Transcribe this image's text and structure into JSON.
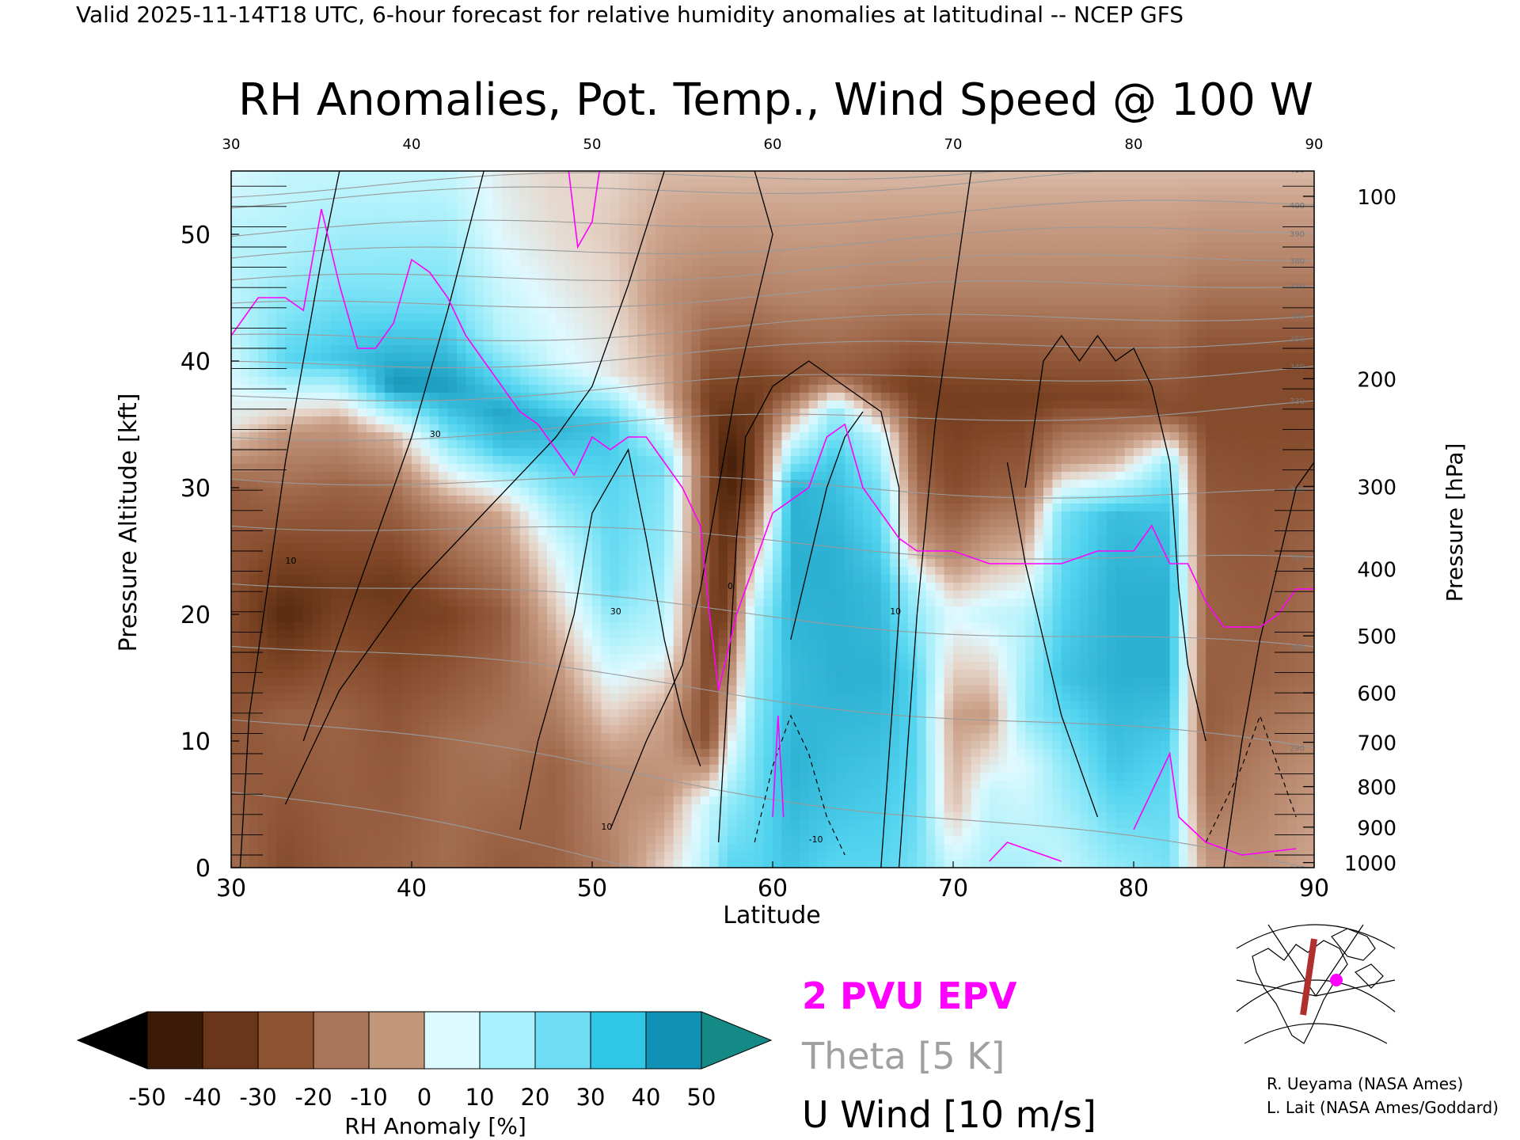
{
  "header": "Valid 2025-11-14T18 UTC, 6-hour forecast for relative humidity anomalies at latitudinal -- NCEP GFS",
  "title": "RH Anomalies, Pot. Temp., Wind Speed @ 100 W",
  "chart_data": {
    "type": "heatmap",
    "xlabel": "Latitude",
    "ylabel_left": "Pressure Altitude [kft]",
    "ylabel_right": "Pressure [hPa]",
    "xlim": [
      30,
      90
    ],
    "ylim": [
      0,
      55
    ],
    "x_ticks": [
      "30",
      "40",
      "50",
      "60",
      "70",
      "80",
      "90"
    ],
    "top_ticks": [
      "30",
      "40",
      "50",
      "60",
      "70",
      "80",
      "90"
    ],
    "y_ticks": [
      "0",
      "10",
      "20",
      "30",
      "40",
      "50"
    ],
    "pressure_ticks": [
      {
        "label": "100",
        "kft": 53.0
      },
      {
        "label": "200",
        "kft": 38.6
      },
      {
        "label": "300",
        "kft": 30.1
      },
      {
        "label": "400",
        "kft": 23.6
      },
      {
        "label": "500",
        "kft": 18.3
      },
      {
        "label": "600",
        "kft": 13.8
      },
      {
        "label": "700",
        "kft": 9.9
      },
      {
        "label": "800",
        "kft": 6.4
      },
      {
        "label": "900",
        "kft": 3.2
      },
      {
        "label": "1000",
        "kft": 0.4
      }
    ],
    "colorbar": {
      "label": "RH Anomaly [%]",
      "tick_labels": [
        "-50",
        "-40",
        "-30",
        "-20",
        "-10",
        "0",
        "10",
        "20",
        "30",
        "40",
        "50"
      ],
      "colors": [
        "#3c1a08",
        "#5e2e12",
        "#7f4626",
        "#9c6446",
        "#b58469",
        "#cca38c",
        "#e6d4c8",
        "#dff9ff",
        "#b5f2fb",
        "#86e6f7",
        "#4fd2ee",
        "#2aaed0",
        "#0d86a8"
      ],
      "under_color": "#000000",
      "over_color": "#138a86"
    },
    "legend": [
      {
        "label": "2 PVU EPV",
        "color": "#ff00ff"
      },
      {
        "label": "Theta [5 K]",
        "color": "#a0a0a0"
      },
      {
        "label": "U Wind [10 m/s]",
        "color": "#000000"
      }
    ],
    "columns": [
      {
        "lat": 30,
        "profile": [
          [
            0,
            -25
          ],
          [
            15,
            -35
          ],
          [
            30,
            -30
          ],
          [
            35,
            5
          ],
          [
            42,
            15
          ],
          [
            50,
            18
          ],
          [
            55,
            10
          ]
        ]
      },
      {
        "lat": 33,
        "profile": [
          [
            0,
            -35
          ],
          [
            12,
            -28
          ],
          [
            20,
            -48
          ],
          [
            28,
            -30
          ],
          [
            34,
            -15
          ],
          [
            40,
            35
          ],
          [
            48,
            20
          ],
          [
            55,
            15
          ]
        ]
      },
      {
        "lat": 36,
        "profile": [
          [
            0,
            -30
          ],
          [
            12,
            -28
          ],
          [
            22,
            -40
          ],
          [
            30,
            -28
          ],
          [
            35,
            -12
          ],
          [
            40,
            40
          ],
          [
            48,
            25
          ],
          [
            55,
            15
          ]
        ]
      },
      {
        "lat": 39,
        "profile": [
          [
            0,
            -28
          ],
          [
            12,
            -32
          ],
          [
            22,
            -42
          ],
          [
            30,
            -25
          ],
          [
            34,
            -5
          ],
          [
            38,
            52
          ],
          [
            45,
            30
          ],
          [
            55,
            15
          ]
        ]
      },
      {
        "lat": 42,
        "profile": [
          [
            0,
            -25
          ],
          [
            10,
            -25
          ],
          [
            20,
            -38
          ],
          [
            28,
            -18
          ],
          [
            34,
            30
          ],
          [
            38,
            50
          ],
          [
            45,
            30
          ],
          [
            55,
            15
          ]
        ]
      },
      {
        "lat": 45,
        "profile": [
          [
            0,
            -30
          ],
          [
            10,
            -22
          ],
          [
            20,
            -30
          ],
          [
            28,
            -8
          ],
          [
            33,
            40
          ],
          [
            36,
            48
          ],
          [
            42,
            18
          ],
          [
            50,
            8
          ],
          [
            55,
            5
          ]
        ]
      },
      {
        "lat": 48,
        "profile": [
          [
            0,
            -28
          ],
          [
            8,
            -28
          ],
          [
            15,
            -15
          ],
          [
            25,
            10
          ],
          [
            30,
            30
          ],
          [
            35,
            45
          ],
          [
            40,
            12
          ],
          [
            50,
            2
          ],
          [
            55,
            0
          ]
        ]
      },
      {
        "lat": 51,
        "profile": [
          [
            0,
            -20
          ],
          [
            8,
            -15
          ],
          [
            15,
            10
          ],
          [
            22,
            32
          ],
          [
            30,
            35
          ],
          [
            35,
            40
          ],
          [
            39,
            5
          ],
          [
            50,
            -2
          ],
          [
            55,
            0
          ]
        ]
      },
      {
        "lat": 54,
        "profile": [
          [
            0,
            0
          ],
          [
            6,
            -15
          ],
          [
            12,
            -10
          ],
          [
            18,
            15
          ],
          [
            25,
            25
          ],
          [
            32,
            30
          ],
          [
            37,
            -5
          ],
          [
            45,
            -15
          ],
          [
            55,
            -5
          ]
        ]
      },
      {
        "lat": 56.5,
        "profile": [
          [
            0,
            20
          ],
          [
            5,
            15
          ],
          [
            10,
            -35
          ],
          [
            18,
            -40
          ],
          [
            25,
            -35
          ],
          [
            32,
            -35
          ],
          [
            37,
            -40
          ],
          [
            45,
            -20
          ],
          [
            55,
            -5
          ]
        ]
      },
      {
        "lat": 57.5,
        "profile": [
          [
            0,
            35
          ],
          [
            5,
            25
          ],
          [
            12,
            -5
          ],
          [
            20,
            -40
          ],
          [
            28,
            -48
          ],
          [
            32,
            -55
          ],
          [
            37,
            -40
          ],
          [
            45,
            -20
          ],
          [
            55,
            -5
          ]
        ]
      },
      {
        "lat": 59,
        "profile": [
          [
            0,
            35
          ],
          [
            8,
            30
          ],
          [
            15,
            25
          ],
          [
            20,
            20
          ],
          [
            25,
            -5
          ],
          [
            30,
            -38
          ],
          [
            37,
            -42
          ],
          [
            45,
            -20
          ],
          [
            55,
            -5
          ]
        ]
      },
      {
        "lat": 61,
        "profile": [
          [
            0,
            40
          ],
          [
            8,
            45
          ],
          [
            15,
            42
          ],
          [
            22,
            45
          ],
          [
            30,
            45
          ],
          [
            34,
            10
          ],
          [
            38,
            -35
          ],
          [
            45,
            -18
          ],
          [
            55,
            -5
          ]
        ]
      },
      {
        "lat": 63.5,
        "profile": [
          [
            0,
            35
          ],
          [
            5,
            40
          ],
          [
            15,
            45
          ],
          [
            25,
            45
          ],
          [
            32,
            40
          ],
          [
            36,
            25
          ],
          [
            39,
            -30
          ],
          [
            45,
            -18
          ],
          [
            55,
            -5
          ]
        ]
      },
      {
        "lat": 66,
        "profile": [
          [
            0,
            35
          ],
          [
            8,
            40
          ],
          [
            15,
            45
          ],
          [
            22,
            42
          ],
          [
            30,
            30
          ],
          [
            34,
            15
          ],
          [
            38,
            -35
          ],
          [
            45,
            -20
          ],
          [
            55,
            -5
          ]
        ]
      },
      {
        "lat": 68,
        "profile": [
          [
            0,
            30
          ],
          [
            8,
            35
          ],
          [
            15,
            35
          ],
          [
            22,
            20
          ],
          [
            26,
            -15
          ],
          [
            32,
            -30
          ],
          [
            38,
            -40
          ],
          [
            45,
            -20
          ],
          [
            55,
            -5
          ]
        ]
      },
      {
        "lat": 70,
        "profile": [
          [
            0,
            15
          ],
          [
            5,
            -5
          ],
          [
            12,
            -10
          ],
          [
            20,
            10
          ],
          [
            25,
            -20
          ],
          [
            30,
            -35
          ],
          [
            37,
            -40
          ],
          [
            45,
            -20
          ],
          [
            55,
            -5
          ]
        ]
      },
      {
        "lat": 72,
        "profile": [
          [
            0,
            20
          ],
          [
            6,
            15
          ],
          [
            12,
            -12
          ],
          [
            20,
            15
          ],
          [
            25,
            -10
          ],
          [
            30,
            -30
          ],
          [
            37,
            -40
          ],
          [
            45,
            -20
          ],
          [
            55,
            -5
          ]
        ]
      },
      {
        "lat": 74,
        "profile": [
          [
            0,
            20
          ],
          [
            8,
            10
          ],
          [
            12,
            25
          ],
          [
            20,
            18
          ],
          [
            26,
            -10
          ],
          [
            30,
            -28
          ],
          [
            37,
            -40
          ],
          [
            45,
            -20
          ],
          [
            55,
            -5
          ]
        ]
      },
      {
        "lat": 76,
        "profile": [
          [
            0,
            15
          ],
          [
            8,
            25
          ],
          [
            15,
            40
          ],
          [
            22,
            35
          ],
          [
            28,
            30
          ],
          [
            32,
            -12
          ],
          [
            37,
            -38
          ],
          [
            45,
            -20
          ],
          [
            55,
            -5
          ]
        ]
      },
      {
        "lat": 79,
        "profile": [
          [
            0,
            25
          ],
          [
            8,
            40
          ],
          [
            15,
            45
          ],
          [
            22,
            45
          ],
          [
            28,
            42
          ],
          [
            32,
            -5
          ],
          [
            37,
            -38
          ],
          [
            45,
            -20
          ],
          [
            55,
            -5
          ]
        ]
      },
      {
        "lat": 82,
        "profile": [
          [
            0,
            30
          ],
          [
            8,
            35
          ],
          [
            15,
            45
          ],
          [
            22,
            45
          ],
          [
            28,
            40
          ],
          [
            32,
            25
          ],
          [
            36,
            -35
          ],
          [
            45,
            -20
          ],
          [
            55,
            -5
          ]
        ]
      },
      {
        "lat": 84,
        "profile": [
          [
            0,
            -12
          ],
          [
            6,
            -25
          ],
          [
            12,
            -30
          ],
          [
            20,
            -28
          ],
          [
            28,
            -30
          ],
          [
            35,
            -35
          ],
          [
            40,
            -35
          ],
          [
            47,
            -20
          ],
          [
            55,
            -5
          ]
        ]
      },
      {
        "lat": 87,
        "profile": [
          [
            0,
            -15
          ],
          [
            8,
            -20
          ],
          [
            15,
            -28
          ],
          [
            22,
            -30
          ],
          [
            28,
            -32
          ],
          [
            35,
            -35
          ],
          [
            40,
            -35
          ],
          [
            47,
            -20
          ],
          [
            55,
            -5
          ]
        ]
      },
      {
        "lat": 90,
        "profile": [
          [
            0,
            -8
          ],
          [
            8,
            -15
          ],
          [
            15,
            -25
          ],
          [
            22,
            -25
          ],
          [
            28,
            -30
          ],
          [
            35,
            -35
          ],
          [
            40,
            -35
          ],
          [
            47,
            -20
          ],
          [
            55,
            -5
          ]
        ]
      }
    ],
    "epv_2pvu": [
      [
        30,
        42
      ],
      [
        31.5,
        45
      ],
      [
        33,
        45
      ],
      [
        34,
        44
      ],
      [
        35,
        52
      ],
      [
        36,
        46
      ],
      [
        37,
        41
      ],
      [
        38,
        41
      ],
      [
        39,
        43
      ],
      [
        40,
        48
      ],
      [
        41,
        47
      ],
      [
        42,
        45
      ],
      [
        43,
        42
      ],
      [
        44,
        40
      ],
      [
        45,
        38
      ],
      [
        46,
        36
      ],
      [
        47,
        35
      ],
      [
        48,
        33
      ],
      [
        49,
        31
      ],
      [
        50,
        34
      ],
      [
        51,
        33
      ],
      [
        52,
        34
      ],
      [
        53,
        34
      ],
      [
        54,
        32
      ],
      [
        55,
        30
      ],
      [
        56,
        27
      ],
      [
        56.5,
        20
      ],
      [
        57,
        14
      ],
      [
        58,
        20
      ],
      [
        59,
        24
      ],
      [
        60,
        28
      ],
      [
        61,
        29
      ],
      [
        62,
        30
      ],
      [
        63,
        34
      ],
      [
        64,
        35
      ],
      [
        65,
        30
      ],
      [
        66,
        28
      ],
      [
        67,
        26
      ],
      [
        68,
        25
      ],
      [
        70,
        25
      ],
      [
        72,
        24
      ],
      [
        74,
        24
      ],
      [
        76,
        24
      ],
      [
        78,
        25
      ],
      [
        80,
        25
      ],
      [
        81,
        27
      ],
      [
        82,
        24
      ],
      [
        83,
        24
      ],
      [
        84,
        21
      ],
      [
        85,
        19
      ],
      [
        87,
        19
      ],
      [
        88,
        20
      ],
      [
        89,
        22
      ],
      [
        90,
        22
      ]
    ],
    "theta_levels": [
      {
        "label": "420",
        "kft": 53.5
      },
      {
        "label": "410",
        "kft": 52.5
      },
      {
        "label": "400",
        "kft": 50
      },
      {
        "label": "390",
        "kft": 48
      },
      {
        "label": "380",
        "kft": 46
      },
      {
        "label": "370",
        "kft": 44
      },
      {
        "label": "360",
        "kft": 41.5
      },
      {
        "label": "350",
        "kft": 39.5
      },
      {
        "label": "340",
        "kft": 37
      },
      {
        "label": "330",
        "kft": 34
      },
      {
        "label": "320",
        "kft": 31
      },
      {
        "label": "310",
        "kft": 27.5
      },
      {
        "label": "300",
        "kft": 23
      },
      {
        "label": "290",
        "kft": 18
      },
      {
        "label": "280",
        "kft": 12
      },
      {
        "label": "270",
        "kft": 6
      }
    ],
    "u_wind_labels": [
      "10",
      "20",
      "30",
      "0",
      "-10"
    ],
    "grid": false
  },
  "map_inset": {
    "icon": "north-america-map-icon",
    "section_color": "#b03030",
    "marker_color": "#ff00ff"
  },
  "credits": [
    "R. Ueyama (NASA Ames)",
    "L. Lait (NASA Ames/Goddard)"
  ]
}
